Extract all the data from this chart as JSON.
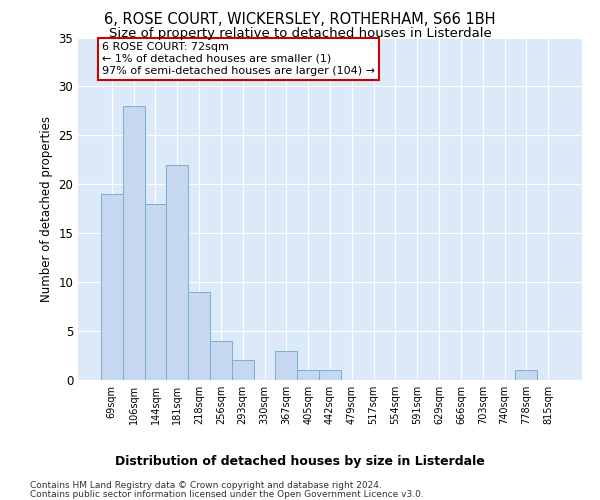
{
  "title": "6, ROSE COURT, WICKERSLEY, ROTHERHAM, S66 1BH",
  "subtitle": "Size of property relative to detached houses in Listerdale",
  "xlabel_bottom": "Distribution of detached houses by size in Listerdale",
  "ylabel": "Number of detached properties",
  "bar_color": "#c5d8f0",
  "bar_edge_color": "#7badd4",
  "categories": [
    "69sqm",
    "106sqm",
    "144sqm",
    "181sqm",
    "218sqm",
    "256sqm",
    "293sqm",
    "330sqm",
    "367sqm",
    "405sqm",
    "442sqm",
    "479sqm",
    "517sqm",
    "554sqm",
    "591sqm",
    "629sqm",
    "666sqm",
    "703sqm",
    "740sqm",
    "778sqm",
    "815sqm"
  ],
  "values": [
    19,
    28,
    18,
    22,
    9,
    4,
    2,
    0,
    3,
    1,
    1,
    0,
    0,
    0,
    0,
    0,
    0,
    0,
    0,
    1,
    0
  ],
  "ylim": [
    0,
    35
  ],
  "yticks": [
    0,
    5,
    10,
    15,
    20,
    25,
    30,
    35
  ],
  "annotation_line1": "6 ROSE COURT: 72sqm",
  "annotation_line2": "← 1% of detached houses are smaller (1)",
  "annotation_line3": "97% of semi-detached houses are larger (104) →",
  "annotation_box_color": "#ffffff",
  "annotation_box_edge_color": "#cc0000",
  "bg_color": "#dce9f8",
  "grid_color": "#ffffff",
  "footer1": "Contains HM Land Registry data © Crown copyright and database right 2024.",
  "footer2": "Contains public sector information licensed under the Open Government Licence v3.0."
}
